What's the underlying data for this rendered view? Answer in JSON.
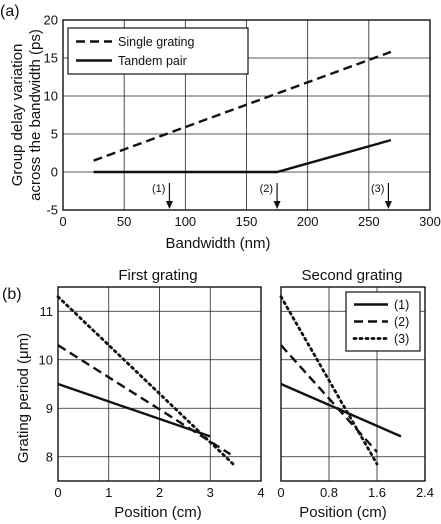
{
  "chart_data": [
    {
      "panel_label": "(a)",
      "type": "line",
      "xlabel": "Bandwidth (nm)",
      "ylabel": "Group delay variation across the bandwidth (ps)",
      "ylabel_lines": [
        "Group delay variation",
        "across the bandwidth (ps)"
      ],
      "xlim": [
        0,
        300
      ],
      "ylim": [
        -5,
        20
      ],
      "xticks": [
        0,
        50,
        100,
        150,
        200,
        250,
        300
      ],
      "yticks": [
        -5,
        0,
        5,
        10,
        15,
        20
      ],
      "grid": true,
      "legend": "top-left",
      "series": [
        {
          "name": "Single grating",
          "style": "dashed",
          "x": [
            25,
            268
          ],
          "y": [
            1.5,
            15.8
          ]
        },
        {
          "name": "Tandem pair",
          "style": "solid",
          "x": [
            25,
            175,
            268
          ],
          "y": [
            0,
            0,
            4.2
          ]
        }
      ],
      "markers": [
        {
          "label": "(1)",
          "x": 87
        },
        {
          "label": "(2)",
          "x": 175
        },
        {
          "label": "(3)",
          "x": 266
        }
      ]
    },
    {
      "panel_label": "(b)",
      "title": "First grating",
      "type": "line",
      "xlabel": "Position (cm)",
      "ylabel": "Grating period (μm)",
      "xlim": [
        0,
        4
      ],
      "ylim": [
        7.5,
        11.5
      ],
      "xticks": [
        0,
        1,
        2,
        3,
        4
      ],
      "yticks": [
        8,
        9,
        10,
        11
      ],
      "grid": true,
      "series": [
        {
          "name": "(1)",
          "style": "solid",
          "x": [
            0,
            3.0
          ],
          "y": [
            9.5,
            8.42
          ]
        },
        {
          "name": "(2)",
          "style": "dashed",
          "x": [
            0,
            3.4
          ],
          "y": [
            10.3,
            8.05
          ]
        },
        {
          "name": "(3)",
          "style": "dotted",
          "x": [
            0,
            3.45
          ],
          "y": [
            11.3,
            7.85
          ]
        }
      ]
    },
    {
      "title": "Second grating",
      "type": "line",
      "xlabel": "Position (cm)",
      "xlim": [
        0,
        2.4
      ],
      "ylim": [
        7.5,
        11.5
      ],
      "xticks": [
        "0",
        "0.8",
        "1.6",
        "2.4"
      ],
      "xtick_values": [
        0,
        0.8,
        1.6,
        2.4
      ],
      "yticks": [
        8,
        9,
        10,
        11
      ],
      "grid": true,
      "legend": "top-right",
      "series": [
        {
          "name": "(1)",
          "style": "solid",
          "x": [
            0,
            2.0
          ],
          "y": [
            9.5,
            8.42
          ]
        },
        {
          "name": "(2)",
          "style": "dashed",
          "x": [
            0,
            1.6
          ],
          "y": [
            10.3,
            8.1
          ]
        },
        {
          "name": "(3)",
          "style": "dotted",
          "x": [
            0,
            1.6
          ],
          "y": [
            11.3,
            7.85
          ]
        }
      ]
    }
  ]
}
